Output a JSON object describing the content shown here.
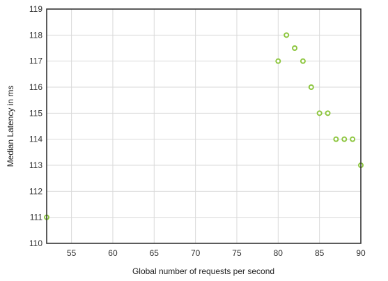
{
  "chart_data": {
    "type": "scatter",
    "xlabel": "Global number of requests per second",
    "ylabel": "Median Latency in ms",
    "xlim": [
      52,
      90
    ],
    "ylim": [
      110,
      119
    ],
    "x_ticks": [
      55,
      60,
      65,
      70,
      75,
      80,
      85,
      90
    ],
    "y_ticks": [
      110,
      111,
      112,
      113,
      114,
      115,
      116,
      117,
      118,
      119
    ],
    "grid": true,
    "legend": "none",
    "marker_color": "#8dc63f",
    "series": [
      {
        "points": [
          {
            "x": 52,
            "y": 111
          },
          {
            "x": 80,
            "y": 117
          },
          {
            "x": 81,
            "y": 118
          },
          {
            "x": 82,
            "y": 117.5
          },
          {
            "x": 83,
            "y": 117
          },
          {
            "x": 84,
            "y": 116
          },
          {
            "x": 85,
            "y": 115
          },
          {
            "x": 86,
            "y": 115
          },
          {
            "x": 87,
            "y": 114
          },
          {
            "x": 88,
            "y": 114
          },
          {
            "x": 89,
            "y": 114
          },
          {
            "x": 90,
            "y": 113
          }
        ]
      }
    ]
  }
}
